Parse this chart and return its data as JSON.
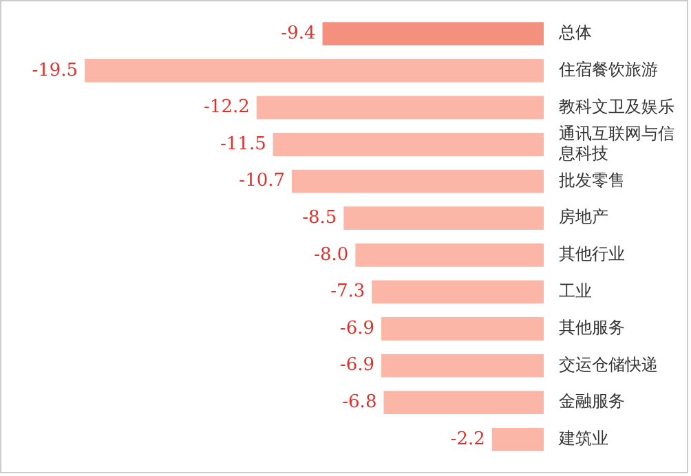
{
  "chart_data": {
    "type": "bar",
    "orientation": "horizontal",
    "categories": [
      "总体",
      "住宿餐饮旅游",
      "教科文卫及娱乐",
      "通讯互联网与信息科技",
      "批发零售",
      "房地产",
      "其他行业",
      "工业",
      "其他服务",
      "交运仓储快递",
      "金融服务",
      "建筑业"
    ],
    "values": [
      -9.4,
      -19.5,
      -12.2,
      -11.5,
      -10.7,
      -8.5,
      -8.0,
      -7.3,
      -6.9,
      -6.9,
      -6.8,
      -2.2
    ],
    "value_labels": [
      "-9.4",
      "-19.5",
      "-12.2",
      "-11.5",
      "-10.7",
      "-8.5",
      "-8.0",
      "-7.3",
      "-6.9",
      "-6.9",
      "-6.8",
      "-2.2"
    ],
    "colors": [
      "#f4907e",
      "#fbb6a8",
      "#fbb6a8",
      "#fbb6a8",
      "#fbb6a8",
      "#fbb6a8",
      "#fbb6a8",
      "#fbb6a8",
      "#fbb6a8",
      "#fbb6a8",
      "#fbb6a8",
      "#fbb6a8"
    ],
    "tick_labels": "y"
  }
}
